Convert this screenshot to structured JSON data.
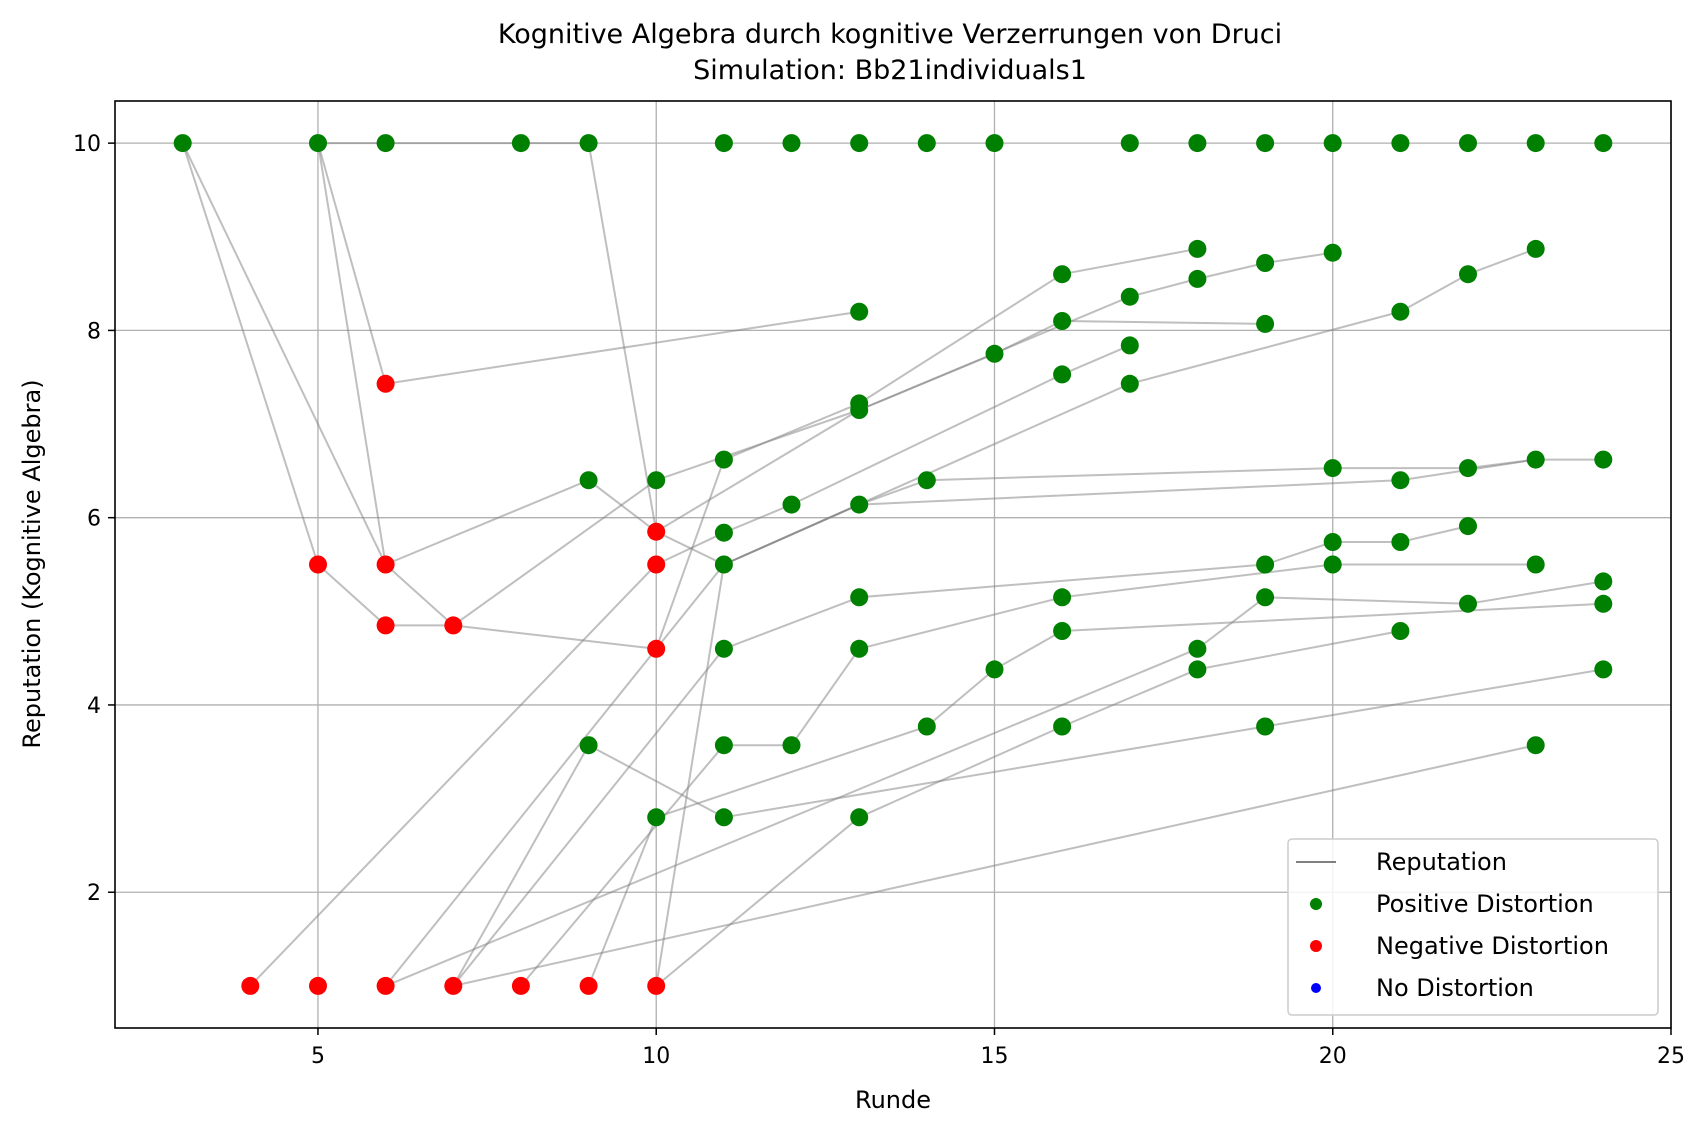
{
  "chart_data": {
    "type": "scatter",
    "title": "Kognitive Algebra durch kognitive Verzerrungen von Druci",
    "subtitle": "Simulation: Bb21individuals1",
    "xlabel": "Runde",
    "ylabel": "Reputation (Kognitive Algebra)",
    "xlim": [
      2,
      25
    ],
    "ylim": [
      0.55,
      10.45
    ],
    "xticks": [
      5,
      10,
      15,
      20,
      25
    ],
    "yticks": [
      2,
      4,
      6,
      8,
      10
    ],
    "grid": true,
    "legend_position": "lower right",
    "colors": {
      "line": "#808080",
      "positive": "#008000",
      "negative": "#ff0000",
      "none": "#0000ff"
    },
    "legend": [
      {
        "label": "Reputation",
        "kind": "line"
      },
      {
        "label": "Positive Distortion",
        "kind": "positive"
      },
      {
        "label": "Negative Distortion",
        "kind": "negative"
      },
      {
        "label": "No Distortion",
        "kind": "none"
      }
    ],
    "trajectories": [
      [
        [
          3,
          10
        ],
        [
          5,
          5.5
        ],
        [
          6,
          4.85
        ],
        [
          7,
          4.85
        ],
        [
          10,
          4.6
        ],
        [
          11,
          6.62
        ],
        [
          13,
          7.22
        ],
        [
          16,
          8.6
        ],
        [
          18,
          8.87
        ]
      ],
      [
        [
          3,
          10
        ],
        [
          6,
          5.5
        ],
        [
          7,
          4.85
        ],
        [
          10,
          6.4
        ],
        [
          13,
          7.15
        ],
        [
          17,
          8.36
        ],
        [
          18,
          8.55
        ],
        [
          19,
          8.72
        ],
        [
          20,
          8.83
        ]
      ],
      [
        [
          5,
          10
        ],
        [
          6,
          5.5
        ],
        [
          9,
          6.4
        ],
        [
          10,
          5.85
        ],
        [
          13,
          7.15
        ],
        [
          15,
          7.75
        ],
        [
          16,
          8.1
        ],
        [
          19,
          8.07
        ]
      ],
      [
        [
          5,
          10
        ],
        [
          6,
          7.43
        ],
        [
          13,
          8.2
        ]
      ],
      [
        [
          5,
          10
        ],
        [
          6,
          10
        ],
        [
          8,
          10
        ],
        [
          9,
          10
        ],
        [
          10,
          5.85
        ],
        [
          11,
          5.5
        ],
        [
          13,
          6.14
        ],
        [
          14,
          6.4
        ],
        [
          20,
          6.53
        ],
        [
          22,
          6.53
        ],
        [
          23,
          6.62
        ],
        [
          24,
          6.62
        ]
      ],
      [
        [
          4,
          1
        ],
        [
          10,
          5.5
        ],
        [
          11,
          5.84
        ],
        [
          12,
          6.14
        ],
        [
          16,
          7.53
        ],
        [
          17,
          7.84
        ]
      ],
      [
        [
          6,
          1
        ],
        [
          11,
          5.5
        ],
        [
          13,
          6.14
        ],
        [
          21,
          6.4
        ],
        [
          23,
          6.62
        ]
      ],
      [
        [
          7,
          1
        ],
        [
          11,
          4.6
        ],
        [
          13,
          5.15
        ],
        [
          19,
          5.5
        ],
        [
          20,
          5.74
        ],
        [
          21,
          5.74
        ],
        [
          22,
          5.91
        ]
      ],
      [
        [
          8,
          1
        ],
        [
          11,
          3.57
        ],
        [
          12,
          3.57
        ],
        [
          13,
          4.6
        ],
        [
          16,
          5.15
        ],
        [
          20,
          5.5
        ],
        [
          23,
          5.5
        ]
      ],
      [
        [
          9,
          1
        ],
        [
          10,
          2.8
        ],
        [
          14,
          3.77
        ],
        [
          15,
          4.38
        ],
        [
          16,
          4.79
        ],
        [
          24,
          5.08
        ]
      ],
      [
        [
          10,
          1
        ],
        [
          11,
          5.5
        ],
        [
          17,
          7.43
        ],
        [
          21,
          8.2
        ],
        [
          22,
          8.6
        ],
        [
          23,
          8.87
        ]
      ],
      [
        [
          7,
          1
        ],
        [
          9,
          3.57
        ],
        [
          11,
          2.8
        ],
        [
          19,
          3.77
        ],
        [
          24,
          4.38
        ]
      ],
      [
        [
          6,
          1
        ],
        [
          18,
          4.6
        ],
        [
          19,
          5.15
        ],
        [
          22,
          5.08
        ],
        [
          24,
          5.32
        ]
      ],
      [
        [
          10,
          1
        ],
        [
          13,
          2.8
        ],
        [
          16,
          3.77
        ],
        [
          18,
          4.38
        ],
        [
          21,
          4.79
        ]
      ],
      [
        [
          7,
          1
        ],
        [
          23,
          3.57
        ]
      ]
    ],
    "series": [
      {
        "name": "Positive Distortion",
        "color": "#008000",
        "points": [
          [
            3,
            10
          ],
          [
            5,
            10
          ],
          [
            6,
            10
          ],
          [
            8,
            10
          ],
          [
            9,
            10
          ],
          [
            11,
            10
          ],
          [
            12,
            10
          ],
          [
            13,
            10
          ],
          [
            14,
            10
          ],
          [
            15,
            10
          ],
          [
            17,
            10
          ],
          [
            18,
            10
          ],
          [
            19,
            10
          ],
          [
            20,
            10
          ],
          [
            21,
            10
          ],
          [
            22,
            10
          ],
          [
            23,
            10
          ],
          [
            24,
            10
          ],
          [
            18,
            8.87
          ],
          [
            23,
            8.87
          ],
          [
            20,
            8.83
          ],
          [
            19,
            8.72
          ],
          [
            16,
            8.6
          ],
          [
            22,
            8.6
          ],
          [
            18,
            8.55
          ],
          [
            17,
            8.36
          ],
          [
            13,
            8.2
          ],
          [
            21,
            8.2
          ],
          [
            16,
            8.1
          ],
          [
            19,
            8.07
          ],
          [
            17,
            7.84
          ],
          [
            15,
            7.75
          ],
          [
            16,
            7.53
          ],
          [
            17,
            7.43
          ],
          [
            13,
            7.22
          ],
          [
            13,
            7.15
          ],
          [
            11,
            6.62
          ],
          [
            23,
            6.62
          ],
          [
            24,
            6.62
          ],
          [
            20,
            6.53
          ],
          [
            22,
            6.53
          ],
          [
            9,
            6.4
          ],
          [
            10,
            6.4
          ],
          [
            14,
            6.4
          ],
          [
            21,
            6.4
          ],
          [
            12,
            6.14
          ],
          [
            13,
            6.14
          ],
          [
            22,
            5.91
          ],
          [
            11,
            5.84
          ],
          [
            20,
            5.74
          ],
          [
            21,
            5.74
          ],
          [
            11,
            5.5
          ],
          [
            19,
            5.5
          ],
          [
            20,
            5.5
          ],
          [
            23,
            5.5
          ],
          [
            24,
            5.32
          ],
          [
            13,
            5.15
          ],
          [
            16,
            5.15
          ],
          [
            19,
            5.15
          ],
          [
            22,
            5.08
          ],
          [
            24,
            5.08
          ],
          [
            16,
            4.79
          ],
          [
            21,
            4.79
          ],
          [
            11,
            4.6
          ],
          [
            13,
            4.6
          ],
          [
            18,
            4.6
          ],
          [
            15,
            4.38
          ],
          [
            18,
            4.38
          ],
          [
            24,
            4.38
          ],
          [
            14,
            3.77
          ],
          [
            16,
            3.77
          ],
          [
            19,
            3.77
          ],
          [
            9,
            3.57
          ],
          [
            11,
            3.57
          ],
          [
            12,
            3.57
          ],
          [
            23,
            3.57
          ],
          [
            10,
            2.8
          ],
          [
            11,
            2.8
          ],
          [
            13,
            2.8
          ]
        ]
      },
      {
        "name": "Negative Distortion",
        "color": "#ff0000",
        "points": [
          [
            6,
            7.43
          ],
          [
            10,
            5.85
          ],
          [
            5,
            5.5
          ],
          [
            6,
            5.5
          ],
          [
            10,
            5.5
          ],
          [
            6,
            4.85
          ],
          [
            7,
            4.85
          ],
          [
            10,
            4.6
          ],
          [
            4,
            1
          ],
          [
            5,
            1
          ],
          [
            6,
            1
          ],
          [
            7,
            1
          ],
          [
            8,
            1
          ],
          [
            9,
            1
          ],
          [
            10,
            1
          ]
        ]
      },
      {
        "name": "No Distortion",
        "color": "#0000ff",
        "points": []
      }
    ]
  }
}
